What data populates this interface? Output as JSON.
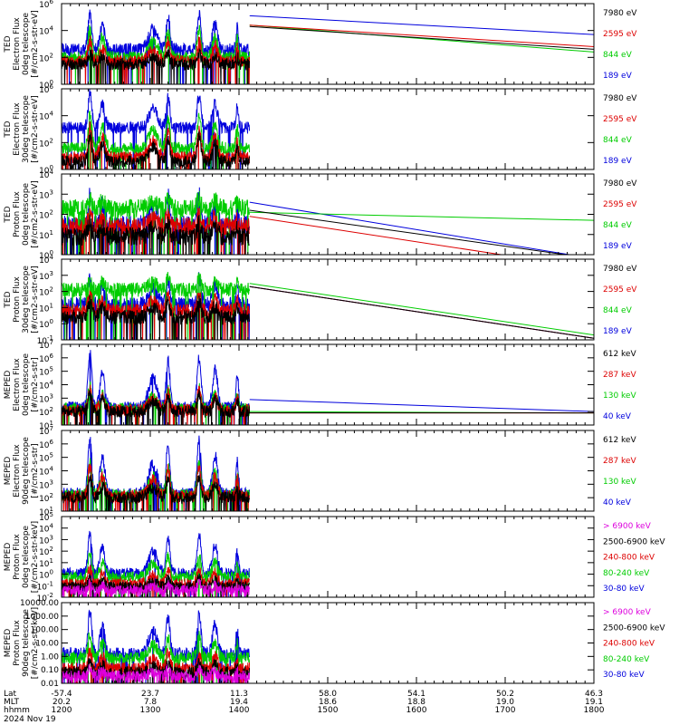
{
  "footer": {
    "row_labels": [
      "Lat",
      "MLT",
      "hhmm"
    ],
    "date": "2024 Nov 19",
    "columns": [
      {
        "x": 1200,
        "lat": "-57.4",
        "mlt": "20.2",
        "hhmm": "1200"
      },
      {
        "x": 1300,
        "lat": "23.7",
        "mlt": "7.8",
        "hhmm": "1300"
      },
      {
        "x": 1400,
        "lat": "11.3",
        "mlt": "19.4",
        "hhmm": "1400"
      },
      {
        "x": 1500,
        "lat": "58.0",
        "mlt": "18.6",
        "hhmm": "1500"
      },
      {
        "x": 1600,
        "lat": "54.1",
        "mlt": "18.8",
        "hhmm": "1600"
      },
      {
        "x": 1700,
        "lat": "50.2",
        "mlt": "19.0",
        "hhmm": "1700"
      },
      {
        "x": 1800,
        "lat": "46.3",
        "mlt": "19.1",
        "hhmm": "1800"
      }
    ]
  },
  "chart_data": [
    {
      "type": "line",
      "ylabel": [
        "TED",
        "Electron Flux",
        "0deg telescope",
        "[#/cm2-s-str-eV]"
      ],
      "yscale": "log",
      "ylim_exp": [
        0,
        6
      ],
      "tick_exps": [
        0,
        2,
        4,
        6
      ],
      "xlim": [
        1200,
        1800
      ],
      "series": [
        {
          "name": "7980 eV",
          "color": "#000000",
          "base": 1.5,
          "peak": 2.4,
          "end": [
            4.3,
            2.6
          ],
          "seed": 11
        },
        {
          "name": "2595 eV",
          "color": "#dd0000",
          "base": 1.7,
          "peak": 3.3,
          "end": [
            4.4,
            2.8
          ],
          "seed": 12
        },
        {
          "name": "844 eV",
          "color": "#00cc00",
          "base": 2.0,
          "peak": 4.2,
          "end": [
            4.4,
            2.4
          ],
          "seed": 13
        },
        {
          "name": "189 eV",
          "color": "#0000dd",
          "base": 2.6,
          "peak": 5.3,
          "end": [
            5.1,
            3.7
          ],
          "seed": 14
        }
      ]
    },
    {
      "type": "line",
      "ylabel": [
        "TED",
        "Electron Flux",
        "30deg telescope",
        "[#/cm2-s-str-eV]"
      ],
      "yscale": "log",
      "ylim_exp": [
        0,
        6
      ],
      "tick_exps": [
        0,
        2,
        4,
        6
      ],
      "xlim": [
        1200,
        1800
      ],
      "series": [
        {
          "name": "7980 eV",
          "color": "#000000",
          "base": 0.6,
          "peak": 2.5,
          "seed": 21
        },
        {
          "name": "2595 eV",
          "color": "#dd0000",
          "base": 0.9,
          "peak": 3.2,
          "seed": 22
        },
        {
          "name": "844 eV",
          "color": "#00cc00",
          "base": 1.6,
          "peak": 4.1,
          "seed": 23
        },
        {
          "name": "189 eV",
          "color": "#0000dd",
          "base": 3.1,
          "peak": 5.6,
          "seed": 24
        }
      ]
    },
    {
      "type": "line",
      "ylabel": [
        "TED",
        "Proton Flux",
        "0deg telescope",
        "[#/cm2-s-str-eV]"
      ],
      "yscale": "log",
      "ylim_exp": [
        0,
        4
      ],
      "tick_exps": [
        0,
        1,
        2,
        3,
        4
      ],
      "xlim": [
        1200,
        1800
      ],
      "series": [
        {
          "name": "7980 eV",
          "color": "#000000",
          "base": 0.9,
          "peak": 1.6,
          "end": [
            2.2,
            -0.2
          ],
          "seed": 31
        },
        {
          "name": "2595 eV",
          "color": "#dd0000",
          "base": 1.4,
          "peak": 2.0,
          "end": [
            1.9,
            -0.7
          ],
          "seed": 32
        },
        {
          "name": "844 eV",
          "color": "#00cc00",
          "base": 2.3,
          "peak": 2.8,
          "end": [
            2.1,
            1.7
          ],
          "seed": 33
        },
        {
          "name": "189 eV",
          "color": "#0000dd",
          "base": 1.5,
          "peak": 3.0,
          "end": [
            2.6,
            -0.2
          ],
          "seed": 34
        }
      ]
    },
    {
      "type": "line",
      "ylabel": [
        "TED",
        "Proton Flux",
        "30deg telescope",
        "[#/cm2-s-str-eV]"
      ],
      "yscale": "log",
      "ylim_exp": [
        -1,
        4
      ],
      "tick_exps": [
        -1,
        0,
        1,
        2,
        3,
        4
      ],
      "xlim": [
        1200,
        1800
      ],
      "series": [
        {
          "name": "7980 eV",
          "color": "#000000",
          "base": 0.4,
          "peak": 1.4,
          "end": [
            2.3,
            -0.9
          ],
          "seed": 41
        },
        {
          "name": "2595 eV",
          "color": "#dd0000",
          "base": 0.8,
          "peak": 1.8,
          "end": [
            2.3,
            -0.9
          ],
          "seed": 42
        },
        {
          "name": "844 eV",
          "color": "#00cc00",
          "base": 2.1,
          "peak": 2.9,
          "end": [
            2.5,
            -0.7
          ],
          "seed": 43
        },
        {
          "name": "189 eV",
          "color": "#0000dd",
          "base": 1.2,
          "peak": 2.9,
          "end": [
            2.3,
            -0.9
          ],
          "seed": 44
        }
      ]
    },
    {
      "type": "line",
      "ylabel": [
        "MEPED",
        "Electron Flux",
        "0deg telescope",
        "[#/cm2-s-str]"
      ],
      "yscale": "log",
      "ylim_exp": [
        1,
        7
      ],
      "tick_exps": [
        1,
        2,
        3,
        4,
        5,
        6,
        7
      ],
      "xlim": [
        1200,
        1800
      ],
      "series": [
        {
          "name": "612 keV",
          "color": "#000000",
          "base": 2.0,
          "peak": 3.3,
          "end": [
            1.9,
            1.9
          ],
          "seed": 51
        },
        {
          "name": "287 keV",
          "color": "#dd0000",
          "base": 2.1,
          "peak": 3.6,
          "end": [
            1.9,
            1.9
          ],
          "seed": 52
        },
        {
          "name": "130 keV",
          "color": "#00cc00",
          "base": 2.2,
          "peak": 3.8,
          "end": [
            2.0,
            1.9
          ],
          "seed": 53
        },
        {
          "name": "40 keV",
          "color": "#0000dd",
          "base": 2.3,
          "peak": 6.3,
          "end": [
            2.9,
            2.0
          ],
          "seed": 54
        }
      ]
    },
    {
      "type": "line",
      "ylabel": [
        "MEPED",
        "Electron Flux",
        "90deg telescope",
        "[#/cm2-s-str]"
      ],
      "yscale": "log",
      "ylim_exp": [
        1,
        7
      ],
      "tick_exps": [
        1,
        2,
        3,
        4,
        5,
        6,
        7
      ],
      "xlim": [
        1200,
        1800
      ],
      "series": [
        {
          "name": "612 keV",
          "color": "#000000",
          "base": 2.0,
          "peak": 3.4,
          "seed": 61
        },
        {
          "name": "287 keV",
          "color": "#dd0000",
          "base": 2.1,
          "peak": 4.3,
          "seed": 62
        },
        {
          "name": "130 keV",
          "color": "#00cc00",
          "base": 2.2,
          "peak": 4.6,
          "seed": 63
        },
        {
          "name": "40 keV",
          "color": "#0000dd",
          "base": 2.3,
          "peak": 6.4,
          "seed": 64
        }
      ]
    },
    {
      "type": "line",
      "ylabel": [
        "MEPED",
        "Proton Flux",
        "0deg telescope",
        "[#/cm2-s-str-keV]"
      ],
      "yscale": "log",
      "ylim_exp": [
        -2,
        5
      ],
      "tick_exps": [
        -2,
        -1,
        0,
        1,
        2,
        3,
        4,
        5
      ],
      "xlim": [
        1200,
        1800
      ],
      "series": [
        {
          "name": "> 6900 keV",
          "color": "#dd00dd",
          "base": -1.4,
          "peak": -0.8,
          "seed": 71
        },
        {
          "name": "2500-6900 keV",
          "color": "#000000",
          "base": -1.1,
          "peak": -0.3,
          "seed": 72
        },
        {
          "name": "240-800 keV",
          "color": "#dd0000",
          "base": -0.8,
          "peak": 0.5,
          "seed": 73
        },
        {
          "name": "80-240 keV",
          "color": "#00cc00",
          "base": -0.2,
          "peak": 1.8,
          "seed": 74
        },
        {
          "name": "30-80 keV",
          "color": "#0000dd",
          "base": 0.1,
          "peak": 3.6,
          "seed": 75
        }
      ]
    },
    {
      "type": "line",
      "ylabel": [
        "MEPED",
        "Proton Flux",
        "90deg telescope",
        "[#/cm2-s-str-keV]"
      ],
      "yscale": "log",
      "ylim_exp": [
        -2,
        4
      ],
      "tick_labels": [
        "0.01",
        "0.10",
        "1.00",
        "10.00",
        "100.00",
        "1000.00",
        "10000.00"
      ],
      "tick_exps": [
        -2,
        -1,
        0,
        1,
        2,
        3,
        4
      ],
      "xlim": [
        1200,
        1800
      ],
      "series": [
        {
          "name": "> 6900 keV",
          "color": "#dd00dd",
          "base": -1.5,
          "peak": -0.9,
          "seed": 81
        },
        {
          "name": "2500-6900 keV",
          "color": "#000000",
          "base": -1.2,
          "peak": -0.4,
          "seed": 82
        },
        {
          "name": "240-800 keV",
          "color": "#dd0000",
          "base": -0.9,
          "peak": 0.4,
          "seed": 83
        },
        {
          "name": "80-240 keV",
          "color": "#00cc00",
          "base": -0.1,
          "peak": 1.6,
          "seed": 84
        },
        {
          "name": "30-80 keV",
          "color": "#0000dd",
          "base": 0.2,
          "peak": 3.3,
          "seed": 85
        }
      ]
    }
  ]
}
